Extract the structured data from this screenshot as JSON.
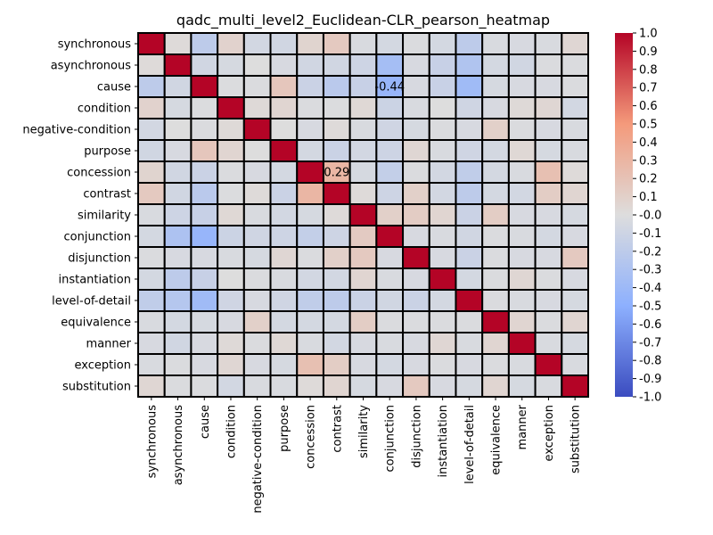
{
  "chart_data": {
    "type": "heatmap",
    "title": "qadc_multi_level2_Euclidean-CLR_pearson_heatmap",
    "xlabel": "",
    "ylabel": "",
    "labels": [
      "synchronous",
      "asynchronous",
      "cause",
      "condition",
      "negative-condition",
      "purpose",
      "concession",
      "contrast",
      "similarity",
      "conjunction",
      "disjunction",
      "instantiation",
      "level-of-detail",
      "equivalence",
      "manner",
      "exception",
      "substitution"
    ],
    "values": [
      [
        1.0,
        0.02,
        -0.2,
        0.08,
        -0.07,
        -0.08,
        0.07,
        0.15,
        -0.03,
        -0.06,
        -0.02,
        -0.06,
        -0.2,
        -0.03,
        -0.04,
        -0.03,
        0.05
      ],
      [
        0.02,
        1.0,
        -0.08,
        -0.05,
        0.0,
        -0.04,
        -0.08,
        -0.08,
        -0.1,
        -0.35,
        -0.04,
        -0.14,
        -0.28,
        -0.06,
        -0.08,
        -0.02,
        -0.02
      ],
      [
        -0.2,
        -0.08,
        1.0,
        -0.01,
        -0.02,
        0.17,
        -0.12,
        -0.22,
        -0.14,
        -0.44,
        -0.04,
        -0.13,
        -0.38,
        -0.05,
        -0.04,
        -0.04,
        -0.02
      ],
      [
        0.08,
        -0.05,
        -0.01,
        1.0,
        0.03,
        0.06,
        -0.02,
        -0.01,
        0.04,
        -0.11,
        -0.03,
        0.0,
        -0.09,
        -0.04,
        0.03,
        0.05,
        -0.07
      ],
      [
        -0.07,
        0.0,
        -0.02,
        0.03,
        1.0,
        0.0,
        -0.04,
        0.02,
        -0.03,
        -0.09,
        -0.05,
        -0.02,
        -0.04,
        0.1,
        -0.02,
        -0.04,
        -0.03
      ],
      [
        -0.08,
        -0.04,
        0.17,
        0.06,
        0.0,
        1.0,
        -0.06,
        -0.12,
        -0.07,
        -0.1,
        0.05,
        -0.03,
        -0.09,
        -0.06,
        0.04,
        -0.05,
        -0.03
      ],
      [
        0.07,
        -0.08,
        -0.12,
        -0.02,
        -0.04,
        -0.06,
        1.0,
        0.29,
        -0.05,
        -0.16,
        -0.02,
        -0.07,
        -0.18,
        -0.06,
        -0.03,
        0.22,
        0.02
      ],
      [
        0.15,
        -0.08,
        -0.22,
        -0.01,
        0.02,
        -0.12,
        0.29,
        1.0,
        0.02,
        -0.1,
        0.1,
        -0.07,
        -0.2,
        -0.06,
        -0.07,
        0.12,
        0.06
      ],
      [
        -0.03,
        -0.1,
        -0.14,
        0.04,
        -0.03,
        -0.07,
        -0.05,
        0.02,
        1.0,
        0.1,
        0.13,
        0.06,
        -0.12,
        0.12,
        -0.04,
        -0.04,
        -0.05
      ],
      [
        -0.06,
        -0.3,
        -0.44,
        -0.11,
        -0.09,
        -0.1,
        -0.16,
        -0.1,
        0.14,
        1.0,
        -0.04,
        -0.03,
        -0.08,
        -0.02,
        -0.03,
        -0.06,
        -0.04
      ],
      [
        -0.02,
        -0.04,
        -0.04,
        -0.03,
        -0.05,
        0.05,
        -0.02,
        0.1,
        0.15,
        -0.04,
        1.0,
        -0.04,
        -0.12,
        -0.02,
        -0.04,
        -0.04,
        0.15
      ],
      [
        -0.06,
        -0.2,
        -0.14,
        0.0,
        -0.02,
        -0.03,
        -0.07,
        -0.07,
        0.06,
        -0.03,
        -0.04,
        1.0,
        -0.06,
        -0.02,
        0.05,
        -0.02,
        -0.04
      ],
      [
        -0.18,
        -0.25,
        -0.38,
        -0.09,
        -0.04,
        -0.09,
        -0.18,
        -0.2,
        -0.12,
        -0.08,
        -0.12,
        -0.06,
        1.0,
        -0.02,
        -0.03,
        -0.04,
        -0.05
      ],
      [
        -0.03,
        -0.06,
        -0.05,
        -0.04,
        0.1,
        -0.06,
        -0.06,
        -0.06,
        0.12,
        -0.02,
        -0.02,
        -0.02,
        -0.02,
        1.0,
        0.06,
        -0.02,
        0.06
      ],
      [
        -0.04,
        -0.08,
        -0.04,
        0.03,
        -0.02,
        0.04,
        -0.03,
        -0.07,
        -0.04,
        -0.03,
        -0.04,
        0.05,
        -0.03,
        0.06,
        1.0,
        -0.03,
        -0.05
      ],
      [
        -0.03,
        -0.02,
        -0.04,
        0.05,
        -0.04,
        -0.05,
        0.22,
        0.12,
        -0.04,
        -0.06,
        -0.04,
        -0.02,
        -0.04,
        -0.02,
        -0.03,
        1.0,
        -0.03
      ],
      [
        0.05,
        -0.02,
        -0.02,
        -0.07,
        -0.03,
        -0.03,
        0.02,
        0.06,
        -0.05,
        -0.04,
        0.15,
        -0.04,
        -0.05,
        0.06,
        -0.05,
        -0.03,
        1.0
      ]
    ],
    "annotations": [
      {
        "row": "cause",
        "col": "conjunction",
        "text": "-0.44"
      },
      {
        "row": "concession",
        "col": "contrast",
        "text": "0.29"
      }
    ],
    "colormap": "coolwarm",
    "vmin": -1.0,
    "vmax": 1.0,
    "colorbar_ticks": [
      "1.0",
      "0.9",
      "0.8",
      "0.7",
      "0.6",
      "0.5",
      "0.4",
      "0.3",
      "0.2",
      "0.1",
      "-0.0",
      "-0.1",
      "-0.2",
      "-0.3",
      "-0.4",
      "-0.5",
      "-0.6",
      "-0.7",
      "-0.8",
      "-0.9",
      "-1.0"
    ],
    "grid": true,
    "cell_border_color": "#000000"
  }
}
